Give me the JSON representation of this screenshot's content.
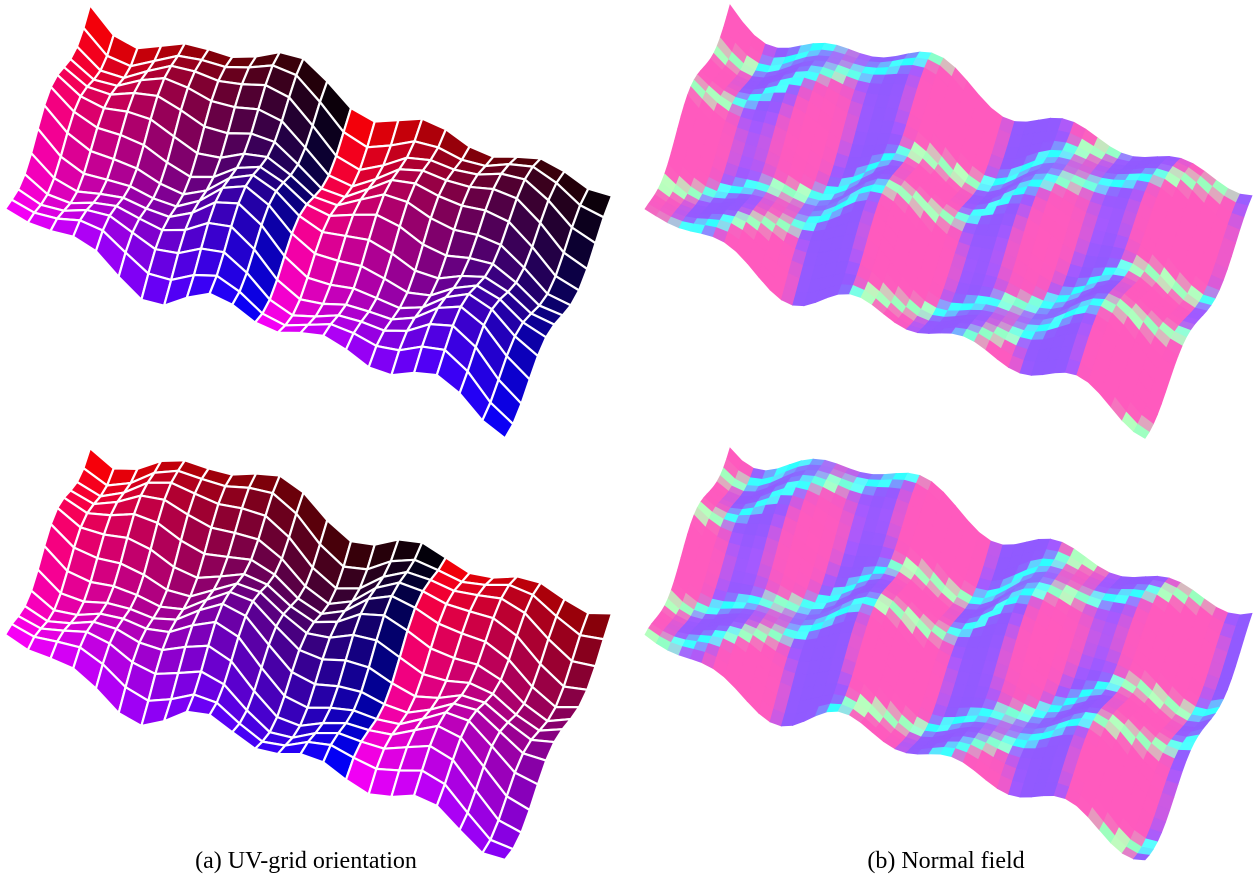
{
  "figure": {
    "panels": [
      {
        "caption": "(a) UV-grid orientation"
      },
      {
        "caption": "(b) Normal field"
      }
    ]
  }
}
